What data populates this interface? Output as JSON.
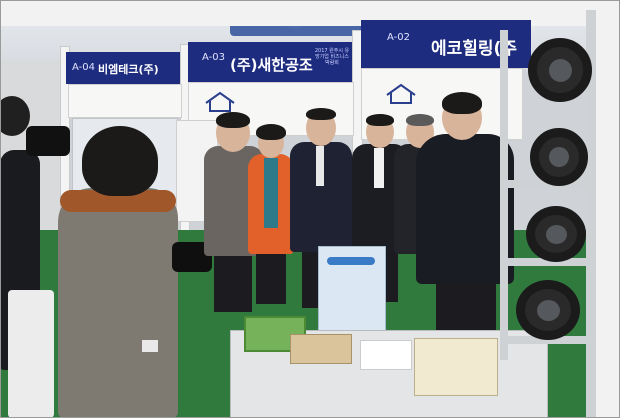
{
  "scene": {
    "kind": "photo",
    "signs": [
      {
        "code": "A-04",
        "name": "비엠테크(주)",
        "color": "#1e2c80"
      },
      {
        "code": "A-03",
        "name": "(주)새한공조",
        "color": "#1e2c80"
      },
      {
        "code": "A-02",
        "name": "에코힐링(주",
        "color": "#1e2c80"
      }
    ],
    "sign_small_text": "2017 원주시 유망기업 비즈니스 박람회"
  },
  "colors": {
    "floor": "#2f7a3c",
    "sign_blue": "#1e2c80",
    "ceiling": "#e3e6ea"
  }
}
